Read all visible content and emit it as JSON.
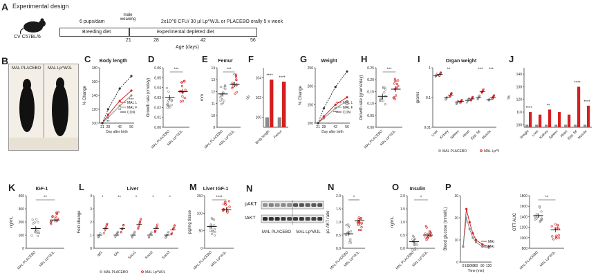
{
  "panel_A": {
    "letter": "A",
    "title": "Experimental design",
    "mouse_label": "CV C57BL/6",
    "pups_label": "6 pups/dam",
    "weaning_label": "male weaning",
    "dose_label": "2x10^8 CFU/ 30 µl Lp^WJL or PLACEBO orally 5 x week",
    "breeding_label": "Breeding diet",
    "depleted_label": "Experimental depleted diet",
    "ticks": [
      "21",
      "28",
      "42",
      "56"
    ],
    "axis_label": "Age (days)"
  },
  "panel_B": {
    "letter": "B",
    "left": "MAL PLACEBO",
    "right": "MAL Lp^WJL"
  },
  "colors": {
    "red": "#d42020",
    "gray": "#8c8c8c",
    "dark": "#333333"
  },
  "chart_data": [
    {
      "panel": "C",
      "type": "line",
      "title": "Body length",
      "ylabel": "% Change",
      "xlabel": "Day after birth",
      "x": [
        21,
        28,
        42,
        56
      ],
      "ylim": [
        100,
        180
      ],
      "yticks": [
        "100",
        "120",
        "140",
        "160",
        "180"
      ],
      "series": [
        {
          "name": "MAL Lp^WJL",
          "values": [
            100,
            112,
            132,
            147
          ]
        },
        {
          "name": "MAL PLACEBO",
          "values": [
            100,
            108,
            125,
            140
          ]
        },
        {
          "name": "CON",
          "values": [
            100,
            120,
            150,
            168
          ]
        }
      ],
      "sig": [
        "**",
        "**",
        "***"
      ]
    },
    {
      "panel": "D",
      "type": "scatter",
      "ylabel": "Growth rate (cm/day)",
      "categories": [
        "MAL PLACEBO",
        "MAL Lp^WJL"
      ],
      "ylim": [
        0.0,
        0.06
      ],
      "yticks": [
        "0.00",
        "0.01",
        "0.02",
        "0.03",
        "0.04",
        "0.05",
        "0.06"
      ],
      "means": [
        0.03,
        0.036
      ],
      "sig": "***"
    },
    {
      "panel": "E",
      "type": "scatter",
      "title": "Femur",
      "ylabel": "mm",
      "categories": [
        "MAL PLACEBO",
        "MAL Lp^WJL"
      ],
      "ylim": [
        9,
        14
      ],
      "yticks": [
        "9",
        "10",
        "11",
        "12",
        "13",
        "14"
      ],
      "means": [
        11.8,
        12.6
      ],
      "sig": "***"
    },
    {
      "panel": "F",
      "type": "bar",
      "ylabel": "%",
      "categories": [
        "Body length",
        "Femur"
      ],
      "ylim": [
        99,
        105
      ],
      "yticks": [
        "100",
        "102",
        "104"
      ],
      "series": [
        {
          "name": "MAL PLACEBO",
          "values": [
            100,
            100
          ]
        },
        {
          "name": "MAL Lp^WJL",
          "values": [
            103.8,
            103.6
          ]
        }
      ],
      "sig": [
        "****",
        "****"
      ]
    },
    {
      "panel": "G",
      "type": "line",
      "title": "Weight",
      "ylabel": "% Change",
      "xlabel": "Day after birth",
      "x": [
        21,
        28,
        42,
        56
      ],
      "ylim": [
        100,
        250
      ],
      "yticks": [
        "100",
        "150",
        "200",
        "250"
      ],
      "series": [
        {
          "name": "MAL Lp^WJL",
          "values": [
            100,
            118,
            150,
            170
          ]
        },
        {
          "name": "MAL PLACEBO",
          "values": [
            100,
            113,
            140,
            160
          ]
        },
        {
          "name": "CON",
          "values": [
            100,
            140,
            198,
            240
          ]
        }
      ],
      "sig": [
        "***",
        "**"
      ]
    },
    {
      "panel": "H",
      "type": "scatter",
      "ylabel": "Growth rate (grams/day)",
      "categories": [
        "MAL PLACEBO",
        "MAL Lp^WJL"
      ],
      "ylim": [
        0.0,
        0.25
      ],
      "yticks": [
        "0.00",
        "0.05",
        "0.10",
        "0.15",
        "0.20",
        "0.25"
      ],
      "means": [
        0.13,
        0.16
      ],
      "sig": "***"
    },
    {
      "panel": "I",
      "type": "scatter",
      "title": "Organ weight",
      "ylabel": "grams",
      "categories": [
        "Liver",
        "Kidney",
        "Spleen",
        "Heart",
        "Epp. fat",
        "Muscle"
      ],
      "yscale": "log",
      "ylim": [
        0.01,
        1
      ],
      "yticks": [
        "0.01",
        "0.1",
        "1"
      ],
      "series": [
        {
          "name": "MAL PLACEBO",
          "values": [
            0.55,
            0.1,
            0.07,
            0.08,
            0.1,
            0.085
          ]
        },
        {
          "name": "MAL Lp^WJL",
          "values": [
            0.6,
            0.12,
            0.075,
            0.09,
            0.16,
            0.1
          ]
        }
      ],
      "sig": [
        "",
        "**",
        "",
        "",
        "***",
        "***"
      ]
    },
    {
      "panel": "J",
      "type": "bar",
      "ylabel": "%",
      "categories": [
        "Weight",
        "Liver",
        "Kidney",
        "Spleen",
        "Heart",
        "Epp. fat",
        "Muscle"
      ],
      "ylim": [
        98,
        145
      ],
      "yticks": [
        "100",
        "110",
        "120",
        "130",
        "140"
      ],
      "series": [
        {
          "name": "MAL PLACEBO",
          "values": [
            100,
            100,
            100,
            100,
            100,
            100,
            100
          ]
        },
        {
          "name": "MAL Lp^WJL",
          "values": [
            110,
            108,
            112,
            110,
            108,
            130,
            115
          ]
        }
      ],
      "sig": [
        "****",
        "",
        "**",
        "",
        "",
        "****",
        "****"
      ]
    },
    {
      "panel": "K",
      "type": "scatter",
      "title": "IGF-1",
      "ylabel": "ng/mL",
      "categories": [
        "MAL PLACEBO",
        "MAL Lp^WJL"
      ],
      "ylim": [
        0,
        400
      ],
      "yticks": [
        "0",
        "100",
        "200",
        "300",
        "400"
      ],
      "means": [
        150,
        215
      ],
      "sig": "**"
    },
    {
      "panel": "L",
      "type": "scatter",
      "title": "Liver",
      "ylabel": "Fold change",
      "categories": [
        "Igf1",
        "Ghr",
        "Socs1",
        "Socs2",
        "Socs3"
      ],
      "ylim": [
        0,
        4
      ],
      "yticks": [
        "0",
        "1",
        "2",
        "3",
        "4"
      ],
      "series": [
        {
          "name": "MAL PLACEBO",
          "values": [
            1,
            1,
            1,
            1,
            1
          ]
        },
        {
          "name": "MAL Lp^WJL",
          "values": [
            1.5,
            1.5,
            1.8,
            1.5,
            1.4
          ]
        }
      ],
      "sig": [
        "*",
        "**",
        "*",
        "*",
        "*"
      ]
    },
    {
      "panel": "M",
      "type": "scatter",
      "title": "Liver IGF-1",
      "ylabel": "pg/mg tissue",
      "categories": [
        "MAL PLACEBO",
        "MAL Lp^WJL"
      ],
      "ylim": [
        0,
        150
      ],
      "yticks": [
        "0",
        "50",
        "100",
        "150"
      ],
      "means": [
        62,
        110
      ],
      "sig": "****"
    },
    {
      "panel": "N",
      "type": "scatter",
      "ylabel": "p1 AKT ratio",
      "categories": [
        "MAL PLACEBO",
        "MAL Lp^WJL"
      ],
      "ylim": [
        0.0,
        2.0
      ],
      "yticks": [
        "0.0",
        "0.5",
        "1.0",
        "1.5",
        "2.0"
      ],
      "means": [
        0.55,
        1.05
      ],
      "sig": "*"
    },
    {
      "panel": "O",
      "type": "scatter",
      "title": "Insulin",
      "ylabel": "ng/mL",
      "categories": [
        "MAL PLACEBO",
        "MAL Lp^WJL"
      ],
      "ylim": [
        0.0,
        2.0
      ],
      "yticks": [
        "0.0",
        "0.5",
        "1.0",
        "1.5",
        "2.0"
      ],
      "means": [
        0.25,
        0.5
      ],
      "sig": "*"
    },
    {
      "panel": "P",
      "type": "line",
      "ylabel": "Blood glucose (mmol/L)",
      "xlabel": "Time (min)",
      "x": [
        0,
        15,
        30,
        45,
        60,
        90,
        120
      ],
      "ylim": [
        0,
        30
      ],
      "yticks": [
        "0",
        "10",
        "20",
        "30"
      ],
      "series": [
        {
          "name": "MAL PLACEBO",
          "values": [
            7,
            24,
            18,
            13,
            10,
            8,
            7
          ]
        },
        {
          "name": "MAL Lp^WJL",
          "values": [
            7,
            20,
            15,
            11,
            9,
            7,
            6.5
          ]
        }
      ]
    },
    {
      "panel": "P2",
      "type": "scatter",
      "ylabel": "GTT AUC",
      "categories": [
        "MAL PLACEBO",
        "MAL Lp^WJL"
      ],
      "ylim": [
        800,
        1800
      ],
      "yticks": [
        "800",
        "1000",
        "1200",
        "1400",
        "1600",
        "1800"
      ],
      "means": [
        1420,
        1150
      ],
      "sig": "**"
    }
  ],
  "panel_N_blot": {
    "rows": [
      "pAKT",
      "tAKT"
    ],
    "groups": [
      "MAL PLACEBO",
      "MAL Lp^WJL"
    ]
  }
}
